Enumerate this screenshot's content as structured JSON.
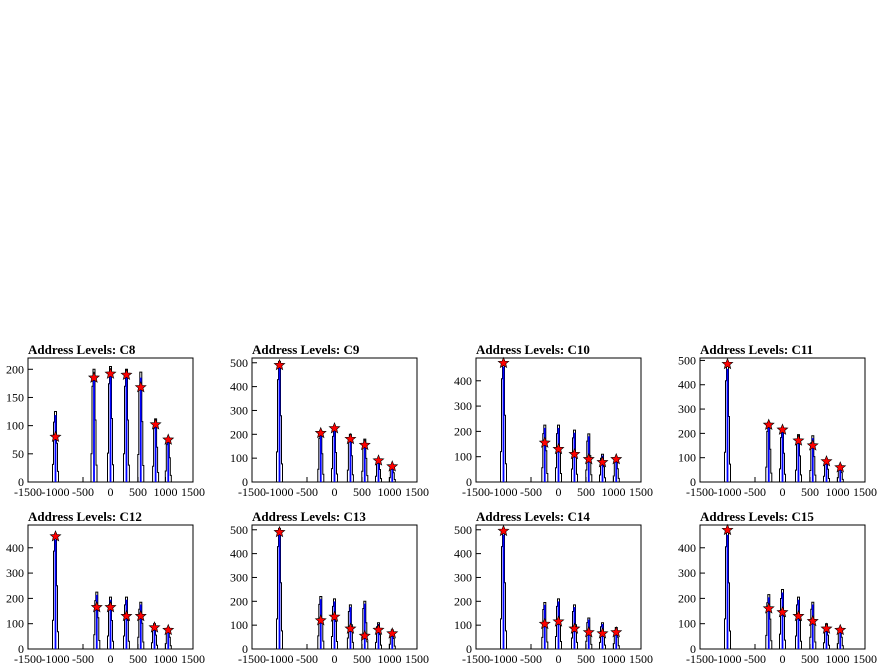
{
  "chart_data": [
    {
      "type": "bar",
      "title": "Address Levels: C8",
      "ylim": [
        0,
        220
      ],
      "xlim": [
        -1500,
        1500
      ],
      "yticks": [
        0,
        50,
        100,
        150,
        200
      ],
      "xticks": [
        -1500,
        -1000,
        -500,
        0,
        500,
        1000,
        1500
      ],
      "spikes": [
        {
          "x": -1000,
          "y": 125
        },
        {
          "x": -300,
          "y": 200
        },
        {
          "x": 0,
          "y": 205
        },
        {
          "x": 290,
          "y": 200
        },
        {
          "x": 550,
          "y": 195
        },
        {
          "x": 820,
          "y": 112
        },
        {
          "x": 1050,
          "y": 78
        }
      ],
      "markers": [
        {
          "x": -1000,
          "y": 80
        },
        {
          "x": -300,
          "y": 185
        },
        {
          "x": 0,
          "y": 192
        },
        {
          "x": 290,
          "y": 190
        },
        {
          "x": 550,
          "y": 168
        },
        {
          "x": 820,
          "y": 102
        },
        {
          "x": 1050,
          "y": 75
        }
      ]
    },
    {
      "type": "bar",
      "title": "Address Levels: C9",
      "ylim": [
        0,
        520
      ],
      "xlim": [
        -1500,
        1500
      ],
      "yticks": [
        0,
        100,
        200,
        300,
        400,
        500
      ],
      "xticks": [
        -1500,
        -1000,
        -500,
        0,
        500,
        1000,
        1500
      ],
      "spikes": [
        {
          "x": -1000,
          "y": 505
        },
        {
          "x": -250,
          "y": 215
        },
        {
          "x": 0,
          "y": 225
        },
        {
          "x": 290,
          "y": 200
        },
        {
          "x": 550,
          "y": 180
        },
        {
          "x": 800,
          "y": 95
        },
        {
          "x": 1050,
          "y": 70
        }
      ],
      "markers": [
        {
          "x": -1000,
          "y": 490
        },
        {
          "x": -250,
          "y": 205
        },
        {
          "x": 0,
          "y": 225
        },
        {
          "x": 290,
          "y": 180
        },
        {
          "x": 550,
          "y": 155
        },
        {
          "x": 800,
          "y": 90
        },
        {
          "x": 1050,
          "y": 65
        }
      ]
    },
    {
      "type": "bar",
      "title": "Address Levels: C10",
      "ylim": [
        0,
        490
      ],
      "xlim": [
        -1500,
        1500
      ],
      "yticks": [
        0,
        100,
        200,
        300,
        400
      ],
      "xticks": [
        -1500,
        -1000,
        -500,
        0,
        500,
        1000,
        1500
      ],
      "spikes": [
        {
          "x": -1000,
          "y": 480
        },
        {
          "x": -250,
          "y": 225
        },
        {
          "x": 0,
          "y": 225
        },
        {
          "x": 290,
          "y": 205
        },
        {
          "x": 550,
          "y": 190
        },
        {
          "x": 800,
          "y": 110
        },
        {
          "x": 1050,
          "y": 95
        }
      ],
      "markers": [
        {
          "x": -1000,
          "y": 470
        },
        {
          "x": -250,
          "y": 155
        },
        {
          "x": 0,
          "y": 130
        },
        {
          "x": 290,
          "y": 110
        },
        {
          "x": 550,
          "y": 90
        },
        {
          "x": 800,
          "y": 78
        },
        {
          "x": 1050,
          "y": 90
        }
      ]
    },
    {
      "type": "bar",
      "title": "Address Levels: C11",
      "ylim": [
        0,
        510
      ],
      "xlim": [
        -1500,
        1500
      ],
      "yticks": [
        0,
        100,
        200,
        300,
        400,
        500
      ],
      "xticks": [
        -1500,
        -1000,
        -500,
        0,
        500,
        1000,
        1500
      ],
      "spikes": [
        {
          "x": -1000,
          "y": 490
        },
        {
          "x": -250,
          "y": 245
        },
        {
          "x": 0,
          "y": 215
        },
        {
          "x": 290,
          "y": 195
        },
        {
          "x": 550,
          "y": 190
        },
        {
          "x": 800,
          "y": 95
        },
        {
          "x": 1050,
          "y": 70
        }
      ],
      "markers": [
        {
          "x": -1000,
          "y": 485
        },
        {
          "x": -250,
          "y": 235
        },
        {
          "x": 0,
          "y": 215
        },
        {
          "x": 290,
          "y": 170
        },
        {
          "x": 550,
          "y": 150
        },
        {
          "x": 800,
          "y": 85
        },
        {
          "x": 1050,
          "y": 60
        }
      ]
    },
    {
      "type": "bar",
      "title": "Address Levels: C12",
      "ylim": [
        0,
        490
      ],
      "xlim": [
        -1500,
        1500
      ],
      "yticks": [
        0,
        100,
        200,
        300,
        400
      ],
      "xticks": [
        -1500,
        -1000,
        -500,
        0,
        500,
        1000,
        1500
      ],
      "spikes": [
        {
          "x": -1000,
          "y": 455
        },
        {
          "x": -250,
          "y": 225
        },
        {
          "x": 0,
          "y": 205
        },
        {
          "x": 290,
          "y": 205
        },
        {
          "x": 550,
          "y": 185
        },
        {
          "x": 800,
          "y": 100
        },
        {
          "x": 1050,
          "y": 85
        }
      ],
      "markers": [
        {
          "x": -1000,
          "y": 445
        },
        {
          "x": -250,
          "y": 165
        },
        {
          "x": 0,
          "y": 165
        },
        {
          "x": 290,
          "y": 130
        },
        {
          "x": 550,
          "y": 130
        },
        {
          "x": 800,
          "y": 85
        },
        {
          "x": 1050,
          "y": 75
        }
      ]
    },
    {
      "type": "bar",
      "title": "Address Levels: C13",
      "ylim": [
        0,
        520
      ],
      "xlim": [
        -1500,
        1500
      ],
      "yticks": [
        0,
        100,
        200,
        300,
        400,
        500
      ],
      "xticks": [
        -1500,
        -1000,
        -500,
        0,
        500,
        1000,
        1500
      ],
      "spikes": [
        {
          "x": -1000,
          "y": 505
        },
        {
          "x": -250,
          "y": 220
        },
        {
          "x": 0,
          "y": 210
        },
        {
          "x": 290,
          "y": 185
        },
        {
          "x": 550,
          "y": 200
        },
        {
          "x": 800,
          "y": 110
        },
        {
          "x": 1050,
          "y": 80
        }
      ],
      "markers": [
        {
          "x": -1000,
          "y": 490
        },
        {
          "x": -250,
          "y": 120
        },
        {
          "x": 0,
          "y": 135
        },
        {
          "x": 290,
          "y": 85
        },
        {
          "x": 550,
          "y": 55
        },
        {
          "x": 800,
          "y": 80
        },
        {
          "x": 1050,
          "y": 65
        }
      ]
    },
    {
      "type": "bar",
      "title": "Address Levels: C14",
      "ylim": [
        0,
        520
      ],
      "xlim": [
        -1500,
        1500
      ],
      "yticks": [
        0,
        100,
        200,
        300,
        400,
        500
      ],
      "xticks": [
        -1500,
        -1000,
        -500,
        0,
        500,
        1000,
        1500
      ],
      "spikes": [
        {
          "x": -1000,
          "y": 505
        },
        {
          "x": -250,
          "y": 195
        },
        {
          "x": 0,
          "y": 210
        },
        {
          "x": 290,
          "y": 185
        },
        {
          "x": 550,
          "y": 130
        },
        {
          "x": 800,
          "y": 110
        },
        {
          "x": 1050,
          "y": 90
        }
      ],
      "markers": [
        {
          "x": -1000,
          "y": 495
        },
        {
          "x": -250,
          "y": 105
        },
        {
          "x": 0,
          "y": 115
        },
        {
          "x": 290,
          "y": 85
        },
        {
          "x": 550,
          "y": 70
        },
        {
          "x": 800,
          "y": 65
        },
        {
          "x": 1050,
          "y": 70
        }
      ]
    },
    {
      "type": "bar",
      "title": "Address Levels: C15",
      "ylim": [
        0,
        490
      ],
      "xlim": [
        -1500,
        1500
      ],
      "yticks": [
        0,
        100,
        200,
        300,
        400
      ],
      "xticks": [
        -1500,
        -1000,
        -500,
        0,
        500,
        1000,
        1500
      ],
      "spikes": [
        {
          "x": -1000,
          "y": 475
        },
        {
          "x": -250,
          "y": 215
        },
        {
          "x": 0,
          "y": 235
        },
        {
          "x": 290,
          "y": 205
        },
        {
          "x": 550,
          "y": 185
        },
        {
          "x": 800,
          "y": 100
        },
        {
          "x": 1050,
          "y": 85
        }
      ],
      "markers": [
        {
          "x": -1000,
          "y": 470
        },
        {
          "x": -250,
          "y": 160
        },
        {
          "x": 0,
          "y": 145
        },
        {
          "x": 290,
          "y": 130
        },
        {
          "x": 550,
          "y": 110
        },
        {
          "x": 800,
          "y": 80
        },
        {
          "x": 1050,
          "y": 75
        }
      ]
    }
  ],
  "colors": {
    "histogram": "#0000ff",
    "outline": "#000000",
    "marker": "#ff0000"
  },
  "marker_icon": "star-marker"
}
